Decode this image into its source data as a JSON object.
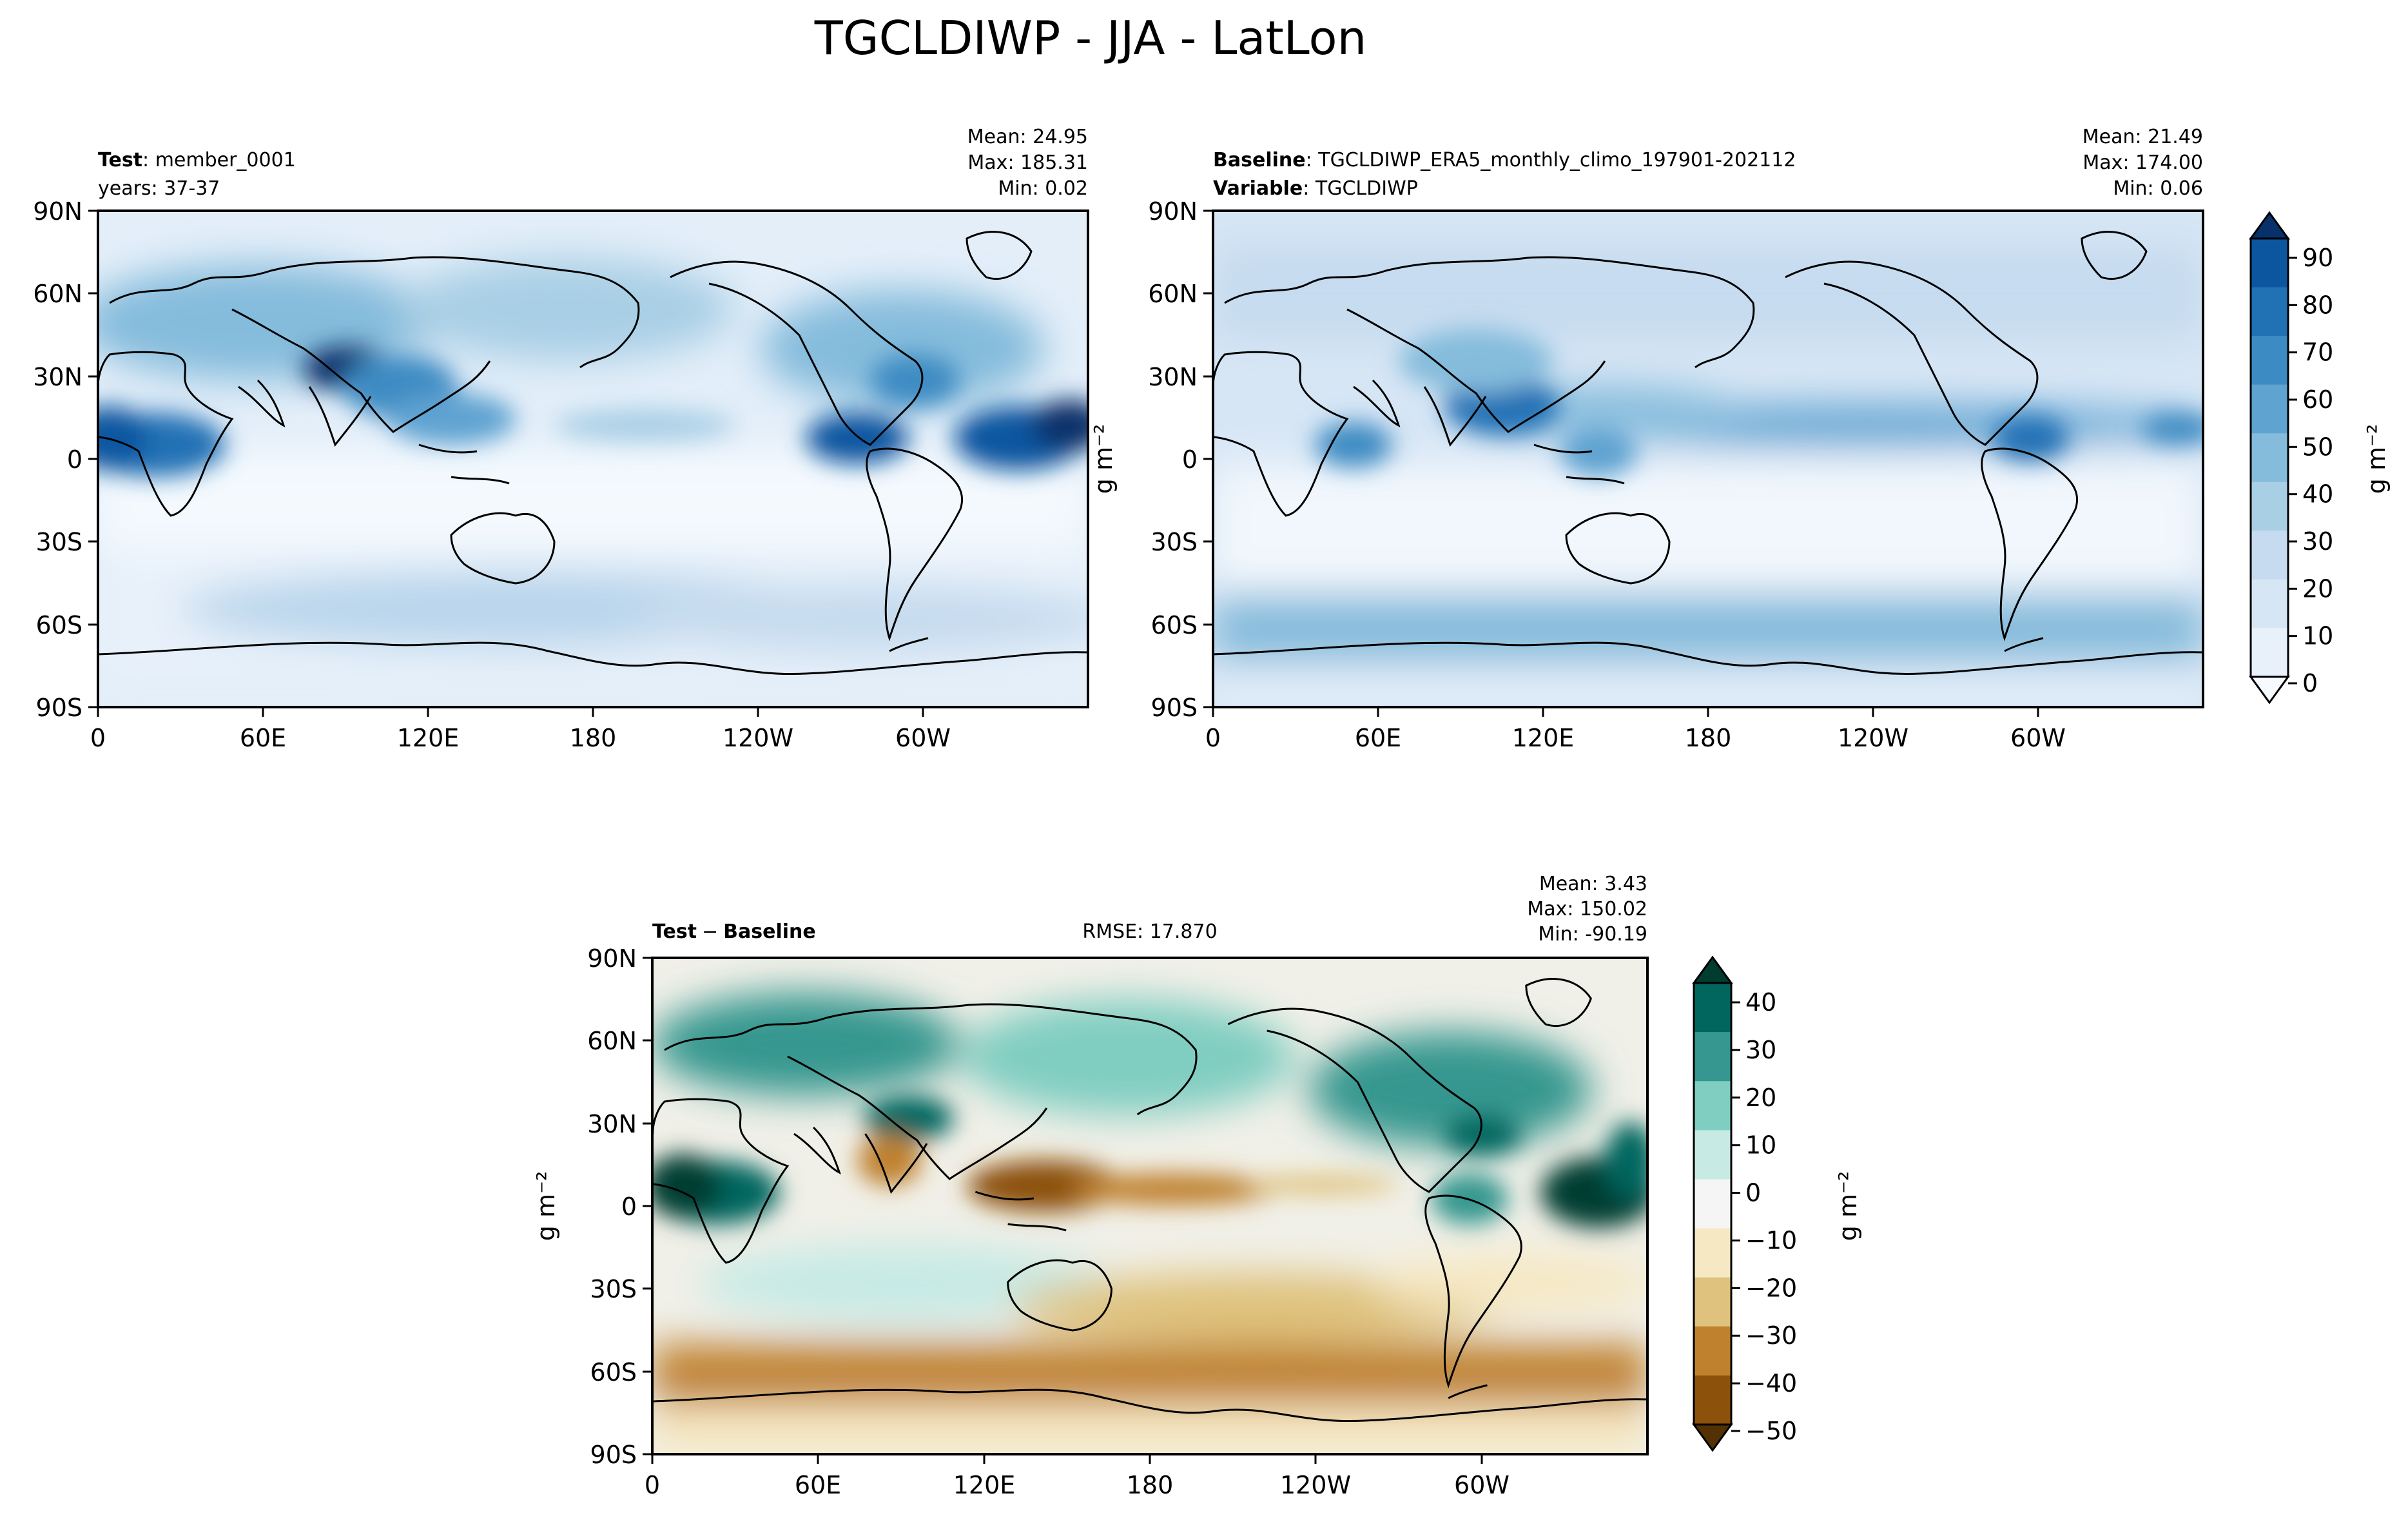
{
  "figure": {
    "title": "TGCLDIWP - JJA - LatLon"
  },
  "panels": [
    {
      "key": "test",
      "left_label_bold": "Test",
      "left_label_text": "member_0001",
      "left_label_line2": "years: 37-37",
      "stats": [
        "Mean: 24.95",
        "Max: 185.31",
        "Min:  0.02"
      ],
      "palette": "blues"
    },
    {
      "key": "baseline",
      "left_label_bold": "Baseline",
      "left_label_text": "TGCLDIWP_ERA5_monthly_climo_197901-202112",
      "left_label_bold2": "Variable",
      "left_label_text2": "TGCLDIWP",
      "stats": [
        "Mean: 21.49",
        "Max: 174.00",
        "Min:  0.06"
      ],
      "palette": "blues"
    },
    {
      "key": "diff",
      "left_label_bold": "Test",
      "left_label_sep": "−",
      "left_label_bold_b": "Baseline",
      "center_label": "RMSE: 17.870",
      "stats": [
        "Mean:  3.43",
        "Max: 150.02",
        "Min: -90.19"
      ],
      "palette": "brbg"
    }
  ],
  "colorbars": {
    "top": {
      "label": "g m⁻²",
      "ticks": [
        "0",
        "10",
        "20",
        "30",
        "40",
        "50",
        "60",
        "70",
        "80",
        "90"
      ],
      "colors": [
        "#f7fbff",
        "#e8f1fa",
        "#d7e6f5",
        "#c6dbef",
        "#a9cfe5",
        "#85bcdc",
        "#5fa3d1",
        "#3d8bc3",
        "#2171b5",
        "#0c56a0",
        "#08306b"
      ]
    },
    "bottom": {
      "label": "g m⁻²",
      "ticks": [
        "40",
        "30",
        "20",
        "10",
        "0",
        "−10",
        "−20",
        "−30",
        "−40",
        "−50"
      ],
      "colors": [
        "#003c30",
        "#01665e",
        "#35978f",
        "#80cdc1",
        "#c7eae5",
        "#f5f5f5",
        "#f6e8c3",
        "#dfc27d",
        "#bf812d",
        "#8c510a",
        "#543005"
      ]
    }
  },
  "axes": {
    "lat_ticks": [
      "90N",
      "60N",
      "30N",
      "0",
      "30S",
      "60S",
      "90S"
    ],
    "lon_ticks": [
      "0",
      "60E",
      "120E",
      "180",
      "120W",
      "60W"
    ],
    "ylabel": "g m⁻²"
  },
  "chart_data": [
    {
      "type": "heatmap",
      "title": "Test: member_0001",
      "x_range": [
        0,
        360
      ],
      "y_range": [
        -90,
        90
      ],
      "colorbar_range": [
        0,
        90
      ],
      "stats": {
        "mean": 24.95,
        "max": 185.31,
        "min": 0.02
      }
    },
    {
      "type": "heatmap",
      "title": "Baseline: TGCLDIWP_ERA5_monthly_climo_197901-202112",
      "x_range": [
        0,
        360
      ],
      "y_range": [
        -90,
        90
      ],
      "colorbar_range": [
        0,
        90
      ],
      "stats": {
        "mean": 21.49,
        "max": 174.0,
        "min": 0.06
      }
    },
    {
      "type": "heatmap",
      "title": "Test − Baseline",
      "x_range": [
        0,
        360
      ],
      "y_range": [
        -90,
        90
      ],
      "colorbar_range": [
        -50,
        40
      ],
      "rmse": 17.87,
      "stats": {
        "mean": 3.43,
        "max": 150.02,
        "min": -90.19
      }
    }
  ]
}
